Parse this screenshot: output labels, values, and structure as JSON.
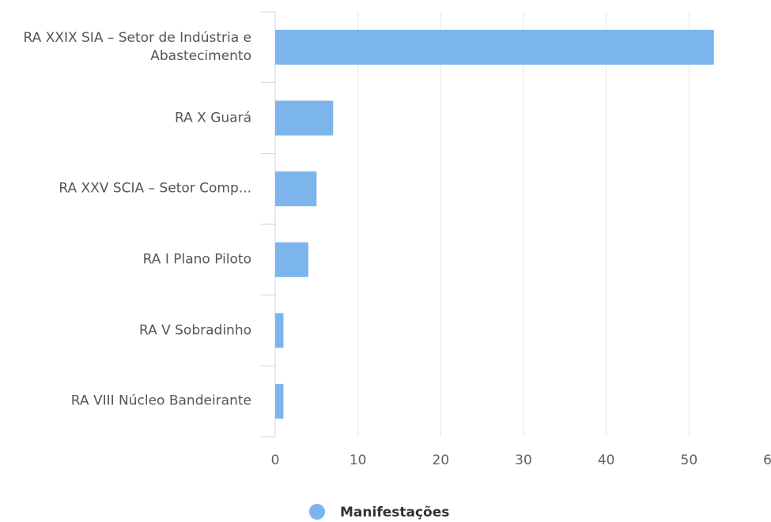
{
  "chart_data": {
    "type": "bar",
    "orientation": "horizontal",
    "categories": [
      "RA XXIX SIA – Setor de Indústria e Abastecimento",
      "RA X Guará",
      "RA XXV SCIA – Setor Comp...",
      "RA I Plano Piloto",
      "RA V Sobradinho",
      "RA VIII Núcleo Bandeirante"
    ],
    "series": [
      {
        "name": "Manifestações",
        "color": "#7cb5ec",
        "values": [
          53,
          7,
          5,
          4,
          1,
          1
        ]
      }
    ],
    "xlim": [
      0,
      60
    ],
    "xticks": [
      0,
      10,
      20,
      30,
      40,
      50,
      60
    ],
    "grid": true,
    "legend": "bottom"
  }
}
